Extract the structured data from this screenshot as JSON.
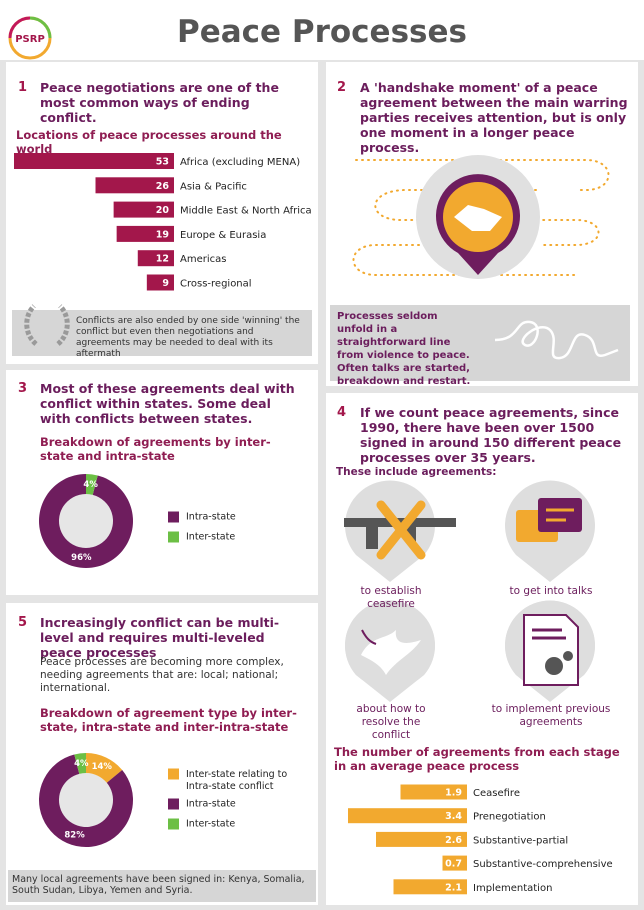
{
  "header": {
    "logo": "PSRP",
    "title": "Peace Processes"
  },
  "sections": [
    {
      "number": "1",
      "heading": "Peace negotiations are one of the most common ways of ending conflict.",
      "note": "Conflicts are also ended by one side 'winning' the conflict but even then negotiations and agreements may be needed to deal with its aftermath"
    },
    {
      "number": "2",
      "heading": "A 'handshake moment' of a peace agreement between the main warring parties receives attention, but is only one moment in a longer peace process.",
      "note": "Processes seldom unfold in a straightforward line from violence to peace. Often talks are started, breakdown and restart."
    },
    {
      "number": "3",
      "heading": "Most of these agreements deal with conflict within states. Some deal with conflicts between states."
    },
    {
      "number": "4",
      "heading": "If we count peace agreements, since 1990, there have been over 1500 signed in around 150 different peace processes over 35 years.",
      "subheading": "These include agreements:",
      "items": [
        "to establish ceasefire",
        "to get into talks",
        "about how to resolve the conflict",
        "to implement previous agreements"
      ]
    },
    {
      "number": "5",
      "heading": "Increasingly conflict can be multi-level and requires multi-leveled peace processes",
      "text": "Peace processes are becoming more complex, needing agreements that are: local; national; international.",
      "note": "Many local agreements have been signed in: Kenya, Somalia, South Sudan, Libya, Yemen and Syria."
    }
  ],
  "chart_data": [
    {
      "type": "bar",
      "orientation": "horizontal",
      "title": "Locations of peace processes around the world",
      "categories": [
        "Africa (excluding MENA)",
        "Asia & Pacific",
        "Middle East & North Africa",
        "Europe & Eurasia",
        "Americas",
        "Cross-regional"
      ],
      "values": [
        53,
        26,
        20,
        19,
        12,
        9
      ],
      "color": "#a3174b"
    },
    {
      "type": "pie",
      "donut": true,
      "title": "Breakdown of agreements by inter-state and intra-state",
      "categories": [
        "Intra-state",
        "Inter-state"
      ],
      "values": [
        96,
        4
      ],
      "value_labels": [
        "96%",
        "4%"
      ],
      "colors": [
        "#6e1d5e",
        "#6cbf45"
      ]
    },
    {
      "type": "pie",
      "donut": true,
      "title": "Breakdown of agreement type by inter-state, intra-state and inter-intra-state",
      "categories": [
        "Inter-state relating to Intra-state conflict",
        "Intra-state",
        "Inter-state"
      ],
      "values": [
        14,
        82,
        4
      ],
      "value_labels": [
        "14%",
        "82%",
        "4%"
      ],
      "colors": [
        "#f2a92f",
        "#6e1d5e",
        "#6cbf45"
      ]
    },
    {
      "type": "bar",
      "orientation": "horizontal",
      "title": "The number of agreements from each stage in an average peace process",
      "categories": [
        "Ceasefire",
        "Prenegotiation",
        "Substantive-partial",
        "Substantive-comprehensive",
        "Implementation"
      ],
      "values": [
        1.9,
        3.4,
        2.6,
        0.7,
        2.1
      ],
      "color": "#f2a92f"
    }
  ]
}
